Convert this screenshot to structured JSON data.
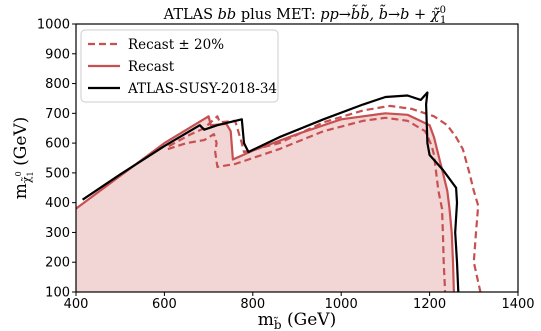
{
  "chart_data": {
    "type": "line",
    "title": {
      "prefix": "ATLAS ",
      "bb": "bb",
      "middle": " plus MET: ",
      "process": "pp→b̃b̃, b̃→b + χ̃",
      "process_sup": "0",
      "process_sub": "1"
    },
    "xlabel": {
      "main": "m",
      "sub": "b̃",
      "unit": " (GeV)"
    },
    "ylabel": {
      "main": "m",
      "sub": "χ̃",
      "subsub": "1",
      "sup": "0",
      "unit": " (GeV)"
    },
    "xlim": [
      400,
      1400
    ],
    "ylim": [
      100,
      1000
    ],
    "xticks": [
      "400",
      "600",
      "800",
      "1000",
      "1200",
      "1400"
    ],
    "yticks": [
      "100",
      "200",
      "300",
      "400",
      "500",
      "600",
      "700",
      "800",
      "900",
      "1000"
    ],
    "grid": false,
    "legend_position": "top-left",
    "legend": [
      {
        "label": "Recast ± 20%",
        "style": "dashed",
        "color": "#c85050"
      },
      {
        "label": "Recast",
        "style": "solid",
        "color": "#c85050"
      },
      {
        "label": "ATLAS-SUSY-2018-34",
        "style": "solid",
        "color": "#000000"
      }
    ],
    "fill_color": "#f2d5d5",
    "series": [
      {
        "name": "Recast",
        "color": "#c85050",
        "style": "solid",
        "fill": true,
        "points": [
          [
            400,
            380
          ],
          [
            500,
            490
          ],
          [
            600,
            600
          ],
          [
            700,
            690
          ],
          [
            705,
            660
          ],
          [
            740,
            665
          ],
          [
            750,
            640
          ],
          [
            755,
            545
          ],
          [
            800,
            575
          ],
          [
            900,
            630
          ],
          [
            1000,
            680
          ],
          [
            1100,
            700
          ],
          [
            1150,
            695
          ],
          [
            1200,
            660
          ],
          [
            1210,
            620
          ],
          [
            1220,
            560
          ],
          [
            1230,
            500
          ],
          [
            1240,
            440
          ],
          [
            1245,
            380
          ],
          [
            1250,
            300
          ],
          [
            1253,
            200
          ],
          [
            1255,
            100
          ]
        ]
      },
      {
        "name": "Recast +20%",
        "color": "#c85050",
        "style": "dashed",
        "points": [
          [
            610,
            590
          ],
          [
            660,
            630
          ],
          [
            690,
            650
          ],
          [
            720,
            690
          ],
          [
            725,
            670
          ],
          [
            760,
            675
          ],
          [
            775,
            600
          ],
          [
            780,
            570
          ],
          [
            860,
            600
          ],
          [
            960,
            670
          ],
          [
            1050,
            710
          ],
          [
            1110,
            725
          ],
          [
            1160,
            715
          ],
          [
            1210,
            690
          ],
          [
            1240,
            660
          ],
          [
            1260,
            620
          ],
          [
            1275,
            580
          ],
          [
            1290,
            500
          ],
          [
            1300,
            440
          ],
          [
            1310,
            390
          ],
          [
            1305,
            300
          ],
          [
            1300,
            200
          ],
          [
            1315,
            100
          ]
        ]
      },
      {
        "name": "Recast -20%",
        "color": "#c85050",
        "style": "dashed",
        "points": [
          [
            608,
            580
          ],
          [
            650,
            600
          ],
          [
            690,
            610
          ],
          [
            712,
            630
          ],
          [
            718,
            600
          ],
          [
            715,
            570
          ],
          [
            720,
            520
          ],
          [
            760,
            530
          ],
          [
            860,
            580
          ],
          [
            960,
            640
          ],
          [
            1050,
            675
          ],
          [
            1100,
            685
          ],
          [
            1150,
            675
          ],
          [
            1190,
            640
          ],
          [
            1205,
            590
          ],
          [
            1210,
            560
          ],
          [
            1215,
            500
          ],
          [
            1220,
            440
          ],
          [
            1228,
            380
          ],
          [
            1230,
            300
          ],
          [
            1232,
            200
          ],
          [
            1235,
            100
          ]
        ]
      },
      {
        "name": "ATLAS-SUSY-2018-34",
        "color": "#000000",
        "style": "solid",
        "points": [
          [
            415,
            410
          ],
          [
            500,
            495
          ],
          [
            600,
            590
          ],
          [
            680,
            660
          ],
          [
            690,
            645
          ],
          [
            720,
            660
          ],
          [
            775,
            680
          ],
          [
            780,
            600
          ],
          [
            790,
            570
          ],
          [
            860,
            620
          ],
          [
            960,
            680
          ],
          [
            1050,
            730
          ],
          [
            1100,
            755
          ],
          [
            1150,
            760
          ],
          [
            1180,
            745
          ],
          [
            1195,
            770
          ],
          [
            1192,
            730
          ],
          [
            1195,
            600
          ],
          [
            1200,
            560
          ],
          [
            1230,
            510
          ],
          [
            1260,
            450
          ],
          [
            1262,
            400
          ],
          [
            1258,
            300
          ],
          [
            1262,
            200
          ],
          [
            1265,
            100
          ]
        ]
      }
    ]
  }
}
